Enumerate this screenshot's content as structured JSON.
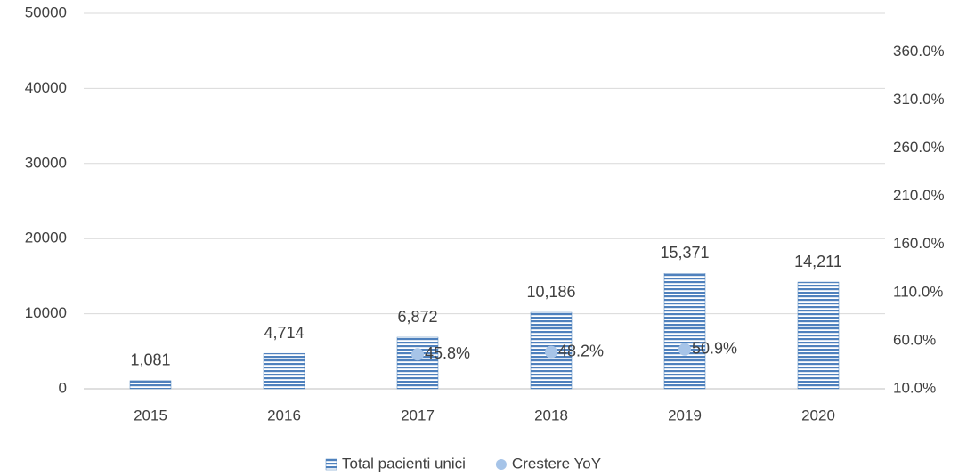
{
  "chart_data": {
    "type": "bar",
    "categories": [
      "2015",
      "2016",
      "2017",
      "2018",
      "2019",
      "2020"
    ],
    "series": [
      {
        "name": "Total pacienti unici",
        "type": "bar",
        "color": "#4f81bd",
        "values": [
          1081,
          4714,
          6872,
          10186,
          15371,
          14211
        ],
        "value_labels": [
          "1,081",
          "4,714",
          "6,872",
          "10,186",
          "15,371",
          "14,211"
        ]
      },
      {
        "name": "Crestere YoY",
        "type": "scatter",
        "axis": "y2",
        "color": "#a6c4e8",
        "values": [
          null,
          null,
          45.8,
          48.2,
          50.9,
          null
        ],
        "value_labels": [
          null,
          null,
          "45.8%",
          "48.2%",
          "50.9%",
          null
        ]
      }
    ],
    "ylim": [
      0,
      50000
    ],
    "yticks": [
      0,
      10000,
      20000,
      30000,
      40000,
      50000
    ],
    "y2lim": [
      10,
      400
    ],
    "y2ticks": [
      {
        "value": 10,
        "label": "10.0%"
      },
      {
        "value": 60,
        "label": "60.0%"
      },
      {
        "value": 110,
        "label": "110.0%"
      },
      {
        "value": 160,
        "label": "160.0%"
      },
      {
        "value": 210,
        "label": "210.0%"
      },
      {
        "value": 260,
        "label": "260.0%"
      },
      {
        "value": 310,
        "label": "310.0%"
      },
      {
        "value": 360,
        "label": "360.0%"
      }
    ],
    "grid": true,
    "legend": "bottom"
  }
}
